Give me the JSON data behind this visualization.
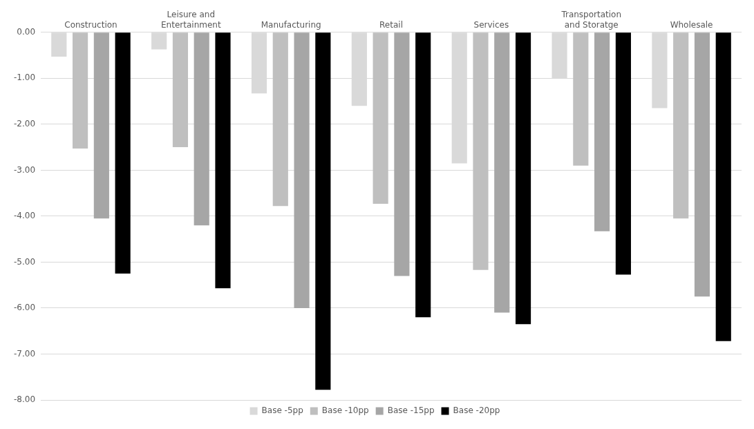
{
  "chart_data": {
    "type": "bar",
    "categories": [
      "Construction",
      "Leisure and Entertainment",
      "Manufacturing",
      "Retail",
      "Services",
      "Transportation and Storatge",
      "Wholesale"
    ],
    "series": [
      {
        "name": "Base -5pp",
        "color": "#d9d9d9",
        "values": [
          -0.53,
          -0.37,
          -1.33,
          -1.6,
          -2.85,
          -1.0,
          -1.65
        ]
      },
      {
        "name": "Base -10pp",
        "color": "#bfbfbf",
        "values": [
          -2.53,
          -2.5,
          -3.78,
          -3.73,
          -5.17,
          -2.9,
          -4.05
        ]
      },
      {
        "name": "Base -15pp",
        "color": "#a6a6a6",
        "values": [
          -4.05,
          -4.2,
          -6.0,
          -5.3,
          -6.1,
          -4.33,
          -5.75
        ]
      },
      {
        "name": "Base -20pp",
        "color": "#000000",
        "values": [
          -5.25,
          -5.57,
          -7.78,
          -6.2,
          -6.35,
          -5.27,
          -6.72
        ]
      }
    ],
    "ylim": [
      -8,
      0
    ],
    "yticks": [
      {
        "value": 0,
        "label": "0.00"
      },
      {
        "value": -1,
        "label": "-1.00"
      },
      {
        "value": -2,
        "label": "-2.00"
      },
      {
        "value": -3,
        "label": "-3.00"
      },
      {
        "value": -4,
        "label": "-4.00"
      },
      {
        "value": -5,
        "label": "-5.00"
      },
      {
        "value": -6,
        "label": "-6.00"
      },
      {
        "value": -7,
        "label": "-7.00"
      },
      {
        "value": -8,
        "label": "-8.00"
      }
    ],
    "grid": "y",
    "legend": "bottom"
  }
}
